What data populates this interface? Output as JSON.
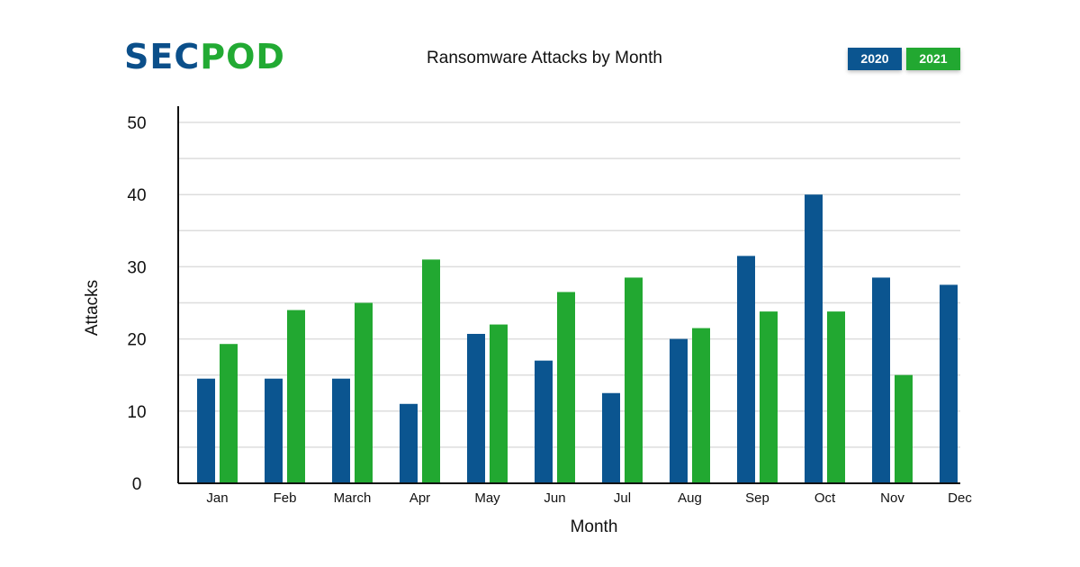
{
  "logo": {
    "part1": "SEC",
    "part2": "POD"
  },
  "colors": {
    "series_2020": "#0b5590",
    "series_2021": "#22a831",
    "grid": "#dddddd",
    "axis": "#111111"
  },
  "chart_data": {
    "type": "bar",
    "title": "Ransomware Attacks by Month",
    "xlabel": "Month",
    "ylabel": "Attacks",
    "ylim": [
      0,
      50
    ],
    "yticks": [
      0,
      10,
      20,
      30,
      40,
      50
    ],
    "grid": true,
    "legend_position": "top-right",
    "categories": [
      "Jan",
      "Feb",
      "March",
      "Apr",
      "May",
      "Jun",
      "Jul",
      "Aug",
      "Sep",
      "Oct",
      "Nov",
      "Dec"
    ],
    "series": [
      {
        "name": "2020",
        "values": [
          14.5,
          14.5,
          14.5,
          11,
          20.7,
          17,
          12.5,
          20,
          31.5,
          40,
          28.5,
          27.5
        ]
      },
      {
        "name": "2021",
        "values": [
          19.3,
          24,
          25,
          31,
          22,
          26.5,
          28.5,
          21.5,
          23.8,
          23.8,
          15,
          null
        ]
      }
    ]
  }
}
